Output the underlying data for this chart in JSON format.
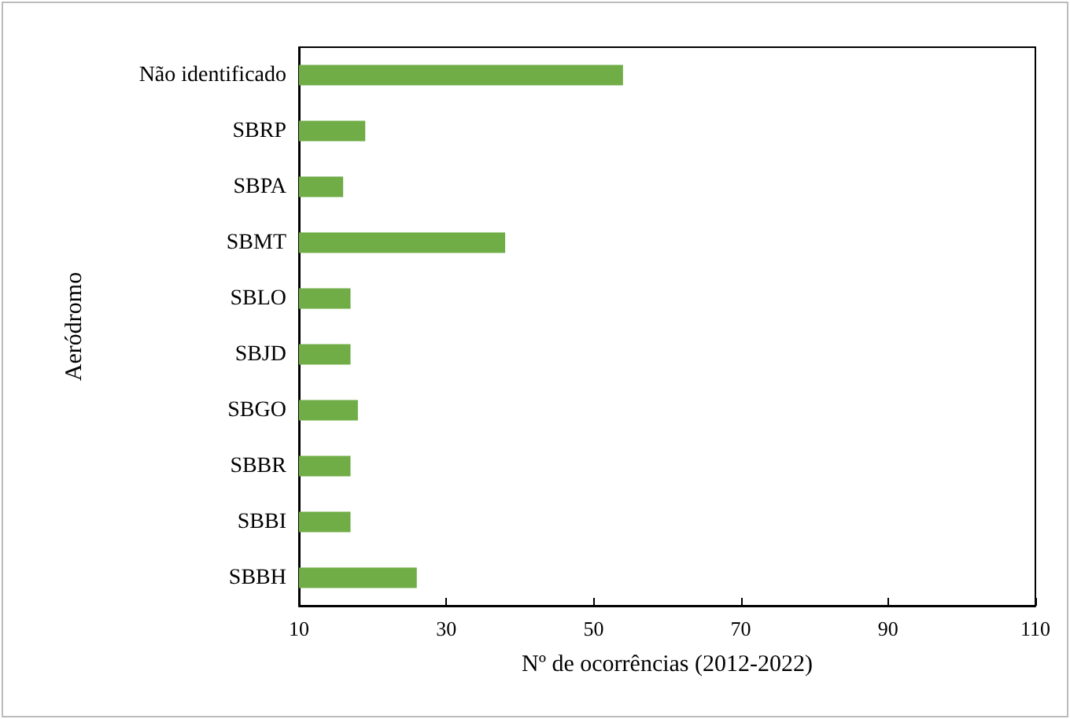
{
  "chart_data": {
    "type": "bar",
    "orientation": "horizontal",
    "xlabel": "Nº de ocorrências (2012-2022)",
    "ylabel": "Aeródromo",
    "categories": [
      "Não identificado",
      "SBRP",
      "SBPA",
      "SBMT",
      "SBLO",
      "SBJD",
      "SBGO",
      "SBBR",
      "SBBI",
      "SBBH"
    ],
    "values": [
      54,
      19,
      16,
      38,
      17,
      17,
      18,
      17,
      17,
      26
    ],
    "color": "#70ad47",
    "xlim": [
      10,
      110
    ],
    "xticks": [
      10,
      30,
      50,
      70,
      90,
      110
    ],
    "grid": false
  }
}
